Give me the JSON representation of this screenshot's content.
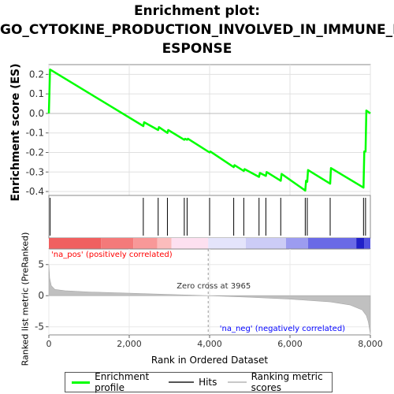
{
  "title_line1": "Enrichment plot:",
  "title_line2": "GO_CYTOKINE_PRODUCTION_INVOLVED_IN_IMMUNE_R",
  "title_line3": "ESPONSE",
  "colors": {
    "enrichment": "#00ff00",
    "hits": "#000000",
    "metric": "#c0c0c0",
    "pos_label": "#ff0000",
    "neg_label": "#0000ff"
  },
  "chart_data": {
    "type": "line",
    "xlabel": "Rank in Ordered Dataset",
    "es_ylabel": "Enrichment score (ES)",
    "metric_ylabel": "Ranked list metric (PreRanked)",
    "xlim": [
      0,
      8000
    ],
    "xticks": [
      "0",
      "2,000",
      "4,000",
      "6,000",
      "8,000"
    ],
    "es_ylim": [
      -0.42,
      0.25
    ],
    "es_yticks": [
      "0.2",
      "0.1",
      "0.0",
      "-0.1",
      "-0.2",
      "-0.3",
      "-0.4"
    ],
    "metric_ylim": [
      -6.3,
      7.5
    ],
    "metric_yticks": [
      "5",
      "0",
      "-5"
    ],
    "es_series": {
      "name": "Enrichment profile",
      "x": [
        0,
        30,
        2350,
        2370,
        2720,
        2740,
        2950,
        2970,
        3370,
        3390,
        3440,
        3460,
        4000,
        4020,
        4600,
        4620,
        4850,
        4870,
        5230,
        5250,
        5400,
        5420,
        5770,
        5790,
        6380,
        6400,
        6430,
        6450,
        7000,
        7020,
        7830,
        7850,
        7880,
        7900,
        8000
      ],
      "y": [
        0.0,
        0.225,
        -0.065,
        -0.045,
        -0.085,
        -0.07,
        -0.1,
        -0.085,
        -0.135,
        -0.13,
        -0.135,
        -0.13,
        -0.2,
        -0.195,
        -0.275,
        -0.265,
        -0.295,
        -0.285,
        -0.325,
        -0.305,
        -0.32,
        -0.3,
        -0.345,
        -0.31,
        -0.395,
        -0.345,
        -0.35,
        -0.29,
        -0.36,
        -0.28,
        -0.38,
        -0.195,
        -0.195,
        0.015,
        0.0
      ]
    },
    "hits": [
      30,
      2350,
      2720,
      2950,
      3370,
      3440,
      4000,
      4600,
      4850,
      5230,
      5400,
      5770,
      6380,
      6430,
      7000,
      7830,
      7880
    ],
    "color_bar": {
      "segments": [
        {
          "from": 0,
          "to": 1300,
          "color": "#f06060"
        },
        {
          "from": 1300,
          "to": 2100,
          "color": "#f47a7a"
        },
        {
          "from": 2100,
          "to": 2700,
          "color": "#f89898"
        },
        {
          "from": 2700,
          "to": 3050,
          "color": "#fbbcbc"
        },
        {
          "from": 3050,
          "to": 3965,
          "color": "#fde0f0"
        },
        {
          "from": 3965,
          "to": 4900,
          "color": "#e4e4fb"
        },
        {
          "from": 4900,
          "to": 5900,
          "color": "#ccccf6"
        },
        {
          "from": 5900,
          "to": 6450,
          "color": "#9c9cf0"
        },
        {
          "from": 6450,
          "to": 7650,
          "color": "#6a6ae6"
        },
        {
          "from": 7650,
          "to": 7850,
          "color": "#2020c8"
        },
        {
          "from": 7850,
          "to": 8000,
          "color": "#5050e0"
        }
      ]
    },
    "metric_series": {
      "x": [
        0,
        20,
        60,
        150,
        400,
        1000,
        2000,
        3000,
        3965,
        5000,
        6000,
        7000,
        7500,
        7800,
        7900,
        7950,
        7990,
        8000
      ],
      "y": [
        5.0,
        2.8,
        1.6,
        1.0,
        0.8,
        0.6,
        0.4,
        0.2,
        0.0,
        -0.25,
        -0.55,
        -1.0,
        -1.5,
        -2.3,
        -3.2,
        -4.2,
        -5.8,
        -6.2
      ]
    },
    "annotations": {
      "zero_cross": "Zero cross at 3965",
      "zero_cross_x": 3965,
      "pos_label": "'na_pos' (positively correlated)",
      "neg_label": "'na_neg' (negatively correlated)"
    }
  },
  "legend": {
    "items": [
      {
        "label": "Enrichment profile"
      },
      {
        "label": "Hits"
      },
      {
        "label": "Ranking metric scores"
      }
    ]
  }
}
